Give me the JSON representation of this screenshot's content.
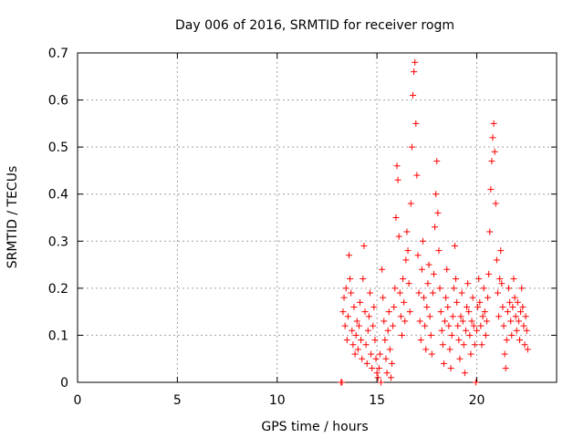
{
  "chart_data": {
    "type": "scatter",
    "title": "Day 006 of 2016, SRMTID for receiver rogm",
    "xlabel": "GPS time / hours",
    "ylabel": "SRMTID / TECUs",
    "xlim": [
      0,
      24
    ],
    "ylim": [
      0,
      0.7
    ],
    "xticks": [
      0,
      5,
      10,
      15,
      20
    ],
    "yticks": [
      0,
      0.1,
      0.2,
      0.3,
      0.4,
      0.5,
      0.6,
      0.7
    ],
    "xtick_labels": [
      "0",
      "5",
      "10",
      "15",
      "20"
    ],
    "ytick_labels": [
      "0",
      "0.1",
      "0.2",
      "0.3",
      "0.4",
      "0.5",
      "0.6",
      "0.7"
    ],
    "grid": true,
    "marker": "+",
    "marker_color": "#ff0000",
    "series": [
      {
        "name": "SRMTID",
        "points": [
          [
            13.2,
            0.0
          ],
          [
            13.25,
            0.0
          ],
          [
            13.3,
            0.15
          ],
          [
            13.35,
            0.18
          ],
          [
            13.4,
            0.12
          ],
          [
            13.45,
            0.2
          ],
          [
            13.5,
            0.09
          ],
          [
            13.55,
            0.14
          ],
          [
            13.6,
            0.27
          ],
          [
            13.65,
            0.22
          ],
          [
            13.7,
            0.19
          ],
          [
            13.75,
            0.11
          ],
          [
            13.8,
            0.08
          ],
          [
            13.85,
            0.16
          ],
          [
            13.9,
            0.06
          ],
          [
            13.95,
            0.1
          ],
          [
            14.0,
            0.13
          ],
          [
            14.05,
            0.07
          ],
          [
            14.1,
            0.12
          ],
          [
            14.15,
            0.17
          ],
          [
            14.2,
            0.09
          ],
          [
            14.25,
            0.05
          ],
          [
            14.3,
            0.22
          ],
          [
            14.35,
            0.29
          ],
          [
            14.4,
            0.15
          ],
          [
            14.45,
            0.08
          ],
          [
            14.5,
            0.04
          ],
          [
            14.55,
            0.11
          ],
          [
            14.6,
            0.14
          ],
          [
            14.65,
            0.19
          ],
          [
            14.7,
            0.06
          ],
          [
            14.75,
            0.03
          ],
          [
            14.8,
            0.12
          ],
          [
            14.85,
            0.16
          ],
          [
            14.9,
            0.09
          ],
          [
            14.95,
            0.05
          ],
          [
            15.0,
            0.02
          ],
          [
            15.05,
            0.01
          ],
          [
            15.1,
            0.03
          ],
          [
            15.15,
            0.06
          ],
          [
            15.2,
            0.0
          ],
          [
            15.25,
            0.24
          ],
          [
            15.3,
            0.18
          ],
          [
            15.35,
            0.13
          ],
          [
            15.4,
            0.09
          ],
          [
            15.45,
            0.05
          ],
          [
            15.5,
            0.02
          ],
          [
            15.55,
            0.11
          ],
          [
            15.6,
            0.15
          ],
          [
            15.65,
            0.07
          ],
          [
            15.7,
            0.01
          ],
          [
            15.75,
            0.04
          ],
          [
            15.8,
            0.12
          ],
          [
            15.85,
            0.16
          ],
          [
            15.9,
            0.2
          ],
          [
            15.95,
            0.35
          ],
          [
            16.0,
            0.46
          ],
          [
            16.05,
            0.43
          ],
          [
            16.1,
            0.31
          ],
          [
            16.15,
            0.19
          ],
          [
            16.2,
            0.14
          ],
          [
            16.25,
            0.1
          ],
          [
            16.3,
            0.22
          ],
          [
            16.35,
            0.17
          ],
          [
            16.4,
            0.13
          ],
          [
            16.45,
            0.26
          ],
          [
            16.5,
            0.32
          ],
          [
            16.55,
            0.28
          ],
          [
            16.6,
            0.21
          ],
          [
            16.65,
            0.15
          ],
          [
            16.7,
            0.38
          ],
          [
            16.75,
            0.5
          ],
          [
            16.8,
            0.61
          ],
          [
            16.85,
            0.66
          ],
          [
            16.9,
            0.68
          ],
          [
            16.95,
            0.55
          ],
          [
            17.0,
            0.44
          ],
          [
            17.05,
            0.27
          ],
          [
            17.1,
            0.19
          ],
          [
            17.15,
            0.13
          ],
          [
            17.2,
            0.09
          ],
          [
            17.25,
            0.24
          ],
          [
            17.3,
            0.3
          ],
          [
            17.35,
            0.18
          ],
          [
            17.4,
            0.12
          ],
          [
            17.45,
            0.07
          ],
          [
            17.5,
            0.16
          ],
          [
            17.55,
            0.21
          ],
          [
            17.6,
            0.25
          ],
          [
            17.65,
            0.14
          ],
          [
            17.7,
            0.1
          ],
          [
            17.75,
            0.06
          ],
          [
            17.8,
            0.19
          ],
          [
            17.85,
            0.23
          ],
          [
            17.9,
            0.33
          ],
          [
            17.95,
            0.4
          ],
          [
            18.0,
            0.47
          ],
          [
            18.05,
            0.36
          ],
          [
            18.1,
            0.28
          ],
          [
            18.15,
            0.2
          ],
          [
            18.2,
            0.15
          ],
          [
            18.25,
            0.11
          ],
          [
            18.3,
            0.08
          ],
          [
            18.35,
            0.04
          ],
          [
            18.4,
            0.13
          ],
          [
            18.45,
            0.18
          ],
          [
            18.5,
            0.24
          ],
          [
            18.55,
            0.16
          ],
          [
            18.6,
            0.12
          ],
          [
            18.65,
            0.07
          ],
          [
            18.7,
            0.03
          ],
          [
            18.75,
            0.1
          ],
          [
            18.8,
            0.14
          ],
          [
            18.85,
            0.2
          ],
          [
            18.9,
            0.29
          ],
          [
            18.95,
            0.22
          ],
          [
            19.0,
            0.17
          ],
          [
            19.05,
            0.12
          ],
          [
            19.1,
            0.09
          ],
          [
            19.15,
            0.05
          ],
          [
            19.2,
            0.14
          ],
          [
            19.25,
            0.19
          ],
          [
            19.3,
            0.13
          ],
          [
            19.35,
            0.08
          ],
          [
            19.4,
            0.02
          ],
          [
            19.45,
            0.11
          ],
          [
            19.5,
            0.16
          ],
          [
            19.55,
            0.21
          ],
          [
            19.6,
            0.15
          ],
          [
            19.65,
            0.1
          ],
          [
            19.7,
            0.06
          ],
          [
            19.75,
            0.13
          ],
          [
            19.8,
            0.18
          ],
          [
            19.85,
            0.12
          ],
          [
            19.9,
            0.08
          ],
          [
            19.95,
            0.0
          ],
          [
            20.0,
            0.11
          ],
          [
            20.05,
            0.16
          ],
          [
            20.1,
            0.22
          ],
          [
            20.15,
            0.17
          ],
          [
            20.2,
            0.12
          ],
          [
            20.25,
            0.08
          ],
          [
            20.3,
            0.14
          ],
          [
            20.35,
            0.2
          ],
          [
            20.4,
            0.15
          ],
          [
            20.45,
            0.1
          ],
          [
            20.5,
            0.13
          ],
          [
            20.55,
            0.18
          ],
          [
            20.6,
            0.23
          ],
          [
            20.65,
            0.32
          ],
          [
            20.7,
            0.41
          ],
          [
            20.75,
            0.47
          ],
          [
            20.8,
            0.52
          ],
          [
            20.85,
            0.55
          ],
          [
            20.9,
            0.49
          ],
          [
            20.95,
            0.38
          ],
          [
            21.0,
            0.26
          ],
          [
            21.05,
            0.19
          ],
          [
            21.1,
            0.14
          ],
          [
            21.15,
            0.22
          ],
          [
            21.2,
            0.28
          ],
          [
            21.25,
            0.21
          ],
          [
            21.3,
            0.16
          ],
          [
            21.35,
            0.12
          ],
          [
            21.4,
            0.06
          ],
          [
            21.45,
            0.03
          ],
          [
            21.5,
            0.09
          ],
          [
            21.55,
            0.15
          ],
          [
            21.6,
            0.2
          ],
          [
            21.65,
            0.17
          ],
          [
            21.7,
            0.13
          ],
          [
            21.75,
            0.1
          ],
          [
            21.8,
            0.16
          ],
          [
            21.85,
            0.22
          ],
          [
            21.9,
            0.18
          ],
          [
            21.95,
            0.14
          ],
          [
            22.0,
            0.11
          ],
          [
            22.05,
            0.17
          ],
          [
            22.1,
            0.13
          ],
          [
            22.15,
            0.09
          ],
          [
            22.2,
            0.15
          ],
          [
            22.25,
            0.2
          ],
          [
            22.3,
            0.16
          ],
          [
            22.35,
            0.12
          ],
          [
            22.4,
            0.08
          ],
          [
            22.45,
            0.14
          ],
          [
            22.5,
            0.11
          ],
          [
            22.55,
            0.07
          ]
        ]
      }
    ]
  }
}
